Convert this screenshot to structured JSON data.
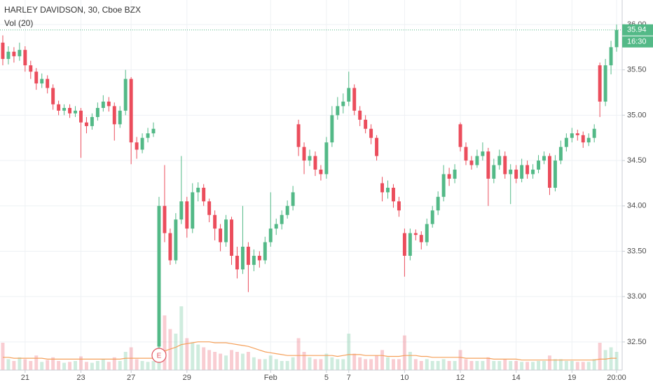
{
  "chart_data": {
    "type": "candlestick",
    "title": "HARLEY DAVIDSON, 30, Cboe BZX",
    "volume_legend": "Vol (20)",
    "countdown": "16:30",
    "earnings_marker": "E",
    "up_color": "#53b987",
    "down_color": "#eb4d5c",
    "volume_ma_color": "#f5a05a",
    "grid": true,
    "xlim": [
      -0.5,
      111
    ],
    "ylim": [
      32.19,
      36.27
    ],
    "vlim": [
      0,
      100
    ],
    "xticks": [
      {
        "value": 4,
        "label": "21"
      },
      {
        "value": 14,
        "label": "23"
      },
      {
        "value": 23,
        "label": "27"
      },
      {
        "value": 33,
        "label": "29"
      },
      {
        "value": 48,
        "label": "Feb"
      },
      {
        "value": 58,
        "label": "5"
      },
      {
        "value": 62,
        "label": "7"
      },
      {
        "value": 72,
        "label": "10"
      },
      {
        "value": 82,
        "label": "12"
      },
      {
        "value": 92,
        "label": "14"
      },
      {
        "value": 102,
        "label": "19"
      },
      {
        "value": 110,
        "label": "20:00"
      }
    ],
    "yticks": [
      {
        "value": 32.5,
        "label": "32.50"
      },
      {
        "value": 33,
        "label": "33.00"
      },
      {
        "value": 33.5,
        "label": "33.50"
      },
      {
        "value": 34,
        "label": "34.00"
      },
      {
        "value": 34.5,
        "label": "34.50"
      },
      {
        "value": 35,
        "label": "35.00"
      },
      {
        "value": 35.5,
        "label": "35.50"
      },
      {
        "value": 36,
        "label": "36.00"
      }
    ],
    "open": [
      35.8,
      35.62,
      35.7,
      35.65,
      35.72,
      35.55,
      35.48,
      35.35,
      35.4,
      35.3,
      35.12,
      35.05,
      35.08,
      35.02,
      35.05,
      34.92,
      34.88,
      34.98,
      35.08,
      35.15,
      35.1,
      34.9,
      35.05,
      35.4,
      34.7,
      34.62,
      34.75,
      34.8,
      32.45,
      34.0,
      33.7,
      33.4,
      33.85,
      34.05,
      33.75,
      34.15,
      34.2,
      34.05,
      33.9,
      33.75,
      33.6,
      33.85,
      33.45,
      33.3,
      33.55,
      33.35,
      33.45,
      33.4,
      33.6,
      33.75,
      33.8,
      33.9,
      34.0,
      34.9,
      34.65,
      34.5,
      34.55,
      34.4,
      34.35,
      34.7,
      35.0,
      35.1,
      35.15,
      35.3,
      35.05,
      34.95,
      34.85,
      34.75,
      34.25,
      34.15,
      34.2,
      34.05,
      33.7,
      33.45,
      33.7,
      33.68,
      33.6,
      33.8,
      33.95,
      34.1,
      34.35,
      34.3,
      34.9,
      34.65,
      34.5,
      34.45,
      34.55,
      34.6,
      34.3,
      34.45,
      34.55,
      34.35,
      34.4,
      34.3,
      34.45,
      34.35,
      34.4,
      34.5,
      34.55,
      34.2,
      34.5,
      34.65,
      34.75,
      34.8,
      34.78,
      34.7,
      34.75,
      35.55,
      35.15,
      35.55,
      35.75
    ],
    "high": [
      35.88,
      35.76,
      35.75,
      35.8,
      35.76,
      35.6,
      35.52,
      35.46,
      35.44,
      35.34,
      35.16,
      35.12,
      35.12,
      35.1,
      35.08,
      34.98,
      35.02,
      35.14,
      35.22,
      35.2,
      35.14,
      35.1,
      35.5,
      35.42,
      34.76,
      34.8,
      34.86,
      34.92,
      34.1,
      34.45,
      33.75,
      33.92,
      34.55,
      34.1,
      34.25,
      34.26,
      34.24,
      34.08,
      33.95,
      33.8,
      33.9,
      33.88,
      33.55,
      34.0,
      33.6,
      33.52,
      33.5,
      33.66,
      34.15,
      33.86,
      33.95,
      34.06,
      34.22,
      34.95,
      34.7,
      34.62,
      34.6,
      34.45,
      34.76,
      35.1,
      35.2,
      35.24,
      35.48,
      35.34,
      35.1,
      35.0,
      34.9,
      34.78,
      34.32,
      34.28,
      34.24,
      34.1,
      33.75,
      33.75,
      33.74,
      33.72,
      33.86,
      34.0,
      34.16,
      34.45,
      34.42,
      34.46,
      34.92,
      34.7,
      34.55,
      34.62,
      34.7,
      34.64,
      34.52,
      34.62,
      34.6,
      34.46,
      34.45,
      34.52,
      34.5,
      34.46,
      34.56,
      34.6,
      34.58,
      34.56,
      34.72,
      34.8,
      34.86,
      34.84,
      34.82,
      34.8,
      34.9,
      35.58,
      35.62,
      35.82,
      36.0
    ],
    "low": [
      35.55,
      35.56,
      35.58,
      35.6,
      35.48,
      35.4,
      35.28,
      35.3,
      35.24,
      35.06,
      35.0,
      35.0,
      34.97,
      34.98,
      34.53,
      34.8,
      34.84,
      34.94,
      35.04,
      35.04,
      34.72,
      34.86,
      35.0,
      34.46,
      34.52,
      34.58,
      34.7,
      34.76,
      32.3,
      33.6,
      33.35,
      33.36,
      33.8,
      33.65,
      33.7,
      34.05,
      34.0,
      33.82,
      33.62,
      33.5,
      33.55,
      33.35,
      33.2,
      33.25,
      33.05,
      33.28,
      33.32,
      33.36,
      33.55,
      33.68,
      33.74,
      33.86,
      33.95,
      34.55,
      34.35,
      34.44,
      34.33,
      34.28,
      34.3,
      34.65,
      34.95,
      35.02,
      35.1,
      35.0,
      34.88,
      34.8,
      34.68,
      34.5,
      34.05,
      34.08,
      33.98,
      33.88,
      33.22,
      33.4,
      33.62,
      33.52,
      33.56,
      33.76,
      33.9,
      34.05,
      34.22,
      34.25,
      34.6,
      34.45,
      34.4,
      34.42,
      34.5,
      34.0,
      34.25,
      34.4,
      34.3,
      34.02,
      34.25,
      34.26,
      34.3,
      34.3,
      34.36,
      34.46,
      34.12,
      34.16,
      34.46,
      34.6,
      34.7,
      34.72,
      34.64,
      34.66,
      34.7,
      34.98,
      35.1,
      35.45,
      35.7
    ],
    "close": [
      35.62,
      35.7,
      35.65,
      35.72,
      35.55,
      35.48,
      35.35,
      35.4,
      35.3,
      35.12,
      35.05,
      35.08,
      35.02,
      35.05,
      34.92,
      34.88,
      34.98,
      35.08,
      35.15,
      35.1,
      34.9,
      35.05,
      35.4,
      34.7,
      34.62,
      34.75,
      34.8,
      34.85,
      34.0,
      33.7,
      33.4,
      33.85,
      34.05,
      33.75,
      34.15,
      34.2,
      34.05,
      33.9,
      33.75,
      33.6,
      33.85,
      33.45,
      33.3,
      33.55,
      33.35,
      33.45,
      33.4,
      33.6,
      33.75,
      33.8,
      33.9,
      34.0,
      34.15,
      34.65,
      34.5,
      34.55,
      34.4,
      34.35,
      34.7,
      35.0,
      35.1,
      35.15,
      35.3,
      35.05,
      34.95,
      34.85,
      34.75,
      34.55,
      34.15,
      34.2,
      34.05,
      33.95,
      33.45,
      33.7,
      33.68,
      33.6,
      33.8,
      33.95,
      34.1,
      34.35,
      34.3,
      34.4,
      34.65,
      34.5,
      34.45,
      34.55,
      34.6,
      34.3,
      34.45,
      34.55,
      34.35,
      34.4,
      34.3,
      34.45,
      34.35,
      34.4,
      34.5,
      34.55,
      34.2,
      34.5,
      34.65,
      34.75,
      34.8,
      34.78,
      34.7,
      34.75,
      34.85,
      35.15,
      35.55,
      35.75,
      35.94
    ],
    "volume": [
      30,
      12,
      10,
      14,
      12,
      10,
      16,
      9,
      11,
      14,
      10,
      8,
      9,
      10,
      15,
      9,
      8,
      10,
      12,
      9,
      14,
      10,
      20,
      25,
      12,
      10,
      9,
      10,
      95,
      60,
      45,
      40,
      70,
      35,
      30,
      28,
      25,
      22,
      20,
      18,
      16,
      22,
      20,
      18,
      20,
      14,
      12,
      12,
      16,
      12,
      10,
      10,
      14,
      35,
      20,
      14,
      12,
      12,
      18,
      14,
      12,
      12,
      40,
      18,
      14,
      12,
      12,
      16,
      22,
      14,
      12,
      12,
      38,
      20,
      12,
      10,
      12,
      10,
      10,
      12,
      10,
      10,
      22,
      12,
      10,
      10,
      10,
      14,
      10,
      10,
      12,
      10,
      10,
      9,
      9,
      9,
      10,
      10,
      16,
      12,
      12,
      10,
      10,
      9,
      9,
      9,
      12,
      30,
      22,
      25,
      20
    ],
    "volume_ma": [
      14,
      14,
      13,
      13,
      13,
      13,
      13,
      13,
      12,
      12,
      12,
      12,
      12,
      12,
      12,
      12,
      12,
      12,
      12,
      12,
      12,
      12,
      13,
      13,
      13,
      13,
      13,
      13,
      18,
      21,
      23,
      25,
      28,
      29,
      30,
      31,
      31,
      31,
      30,
      30,
      30,
      29,
      28,
      27,
      26,
      24,
      22,
      20,
      19,
      18,
      17,
      16,
      16,
      16,
      16,
      16,
      16,
      16,
      16,
      16,
      15,
      16,
      17,
      17,
      17,
      16,
      16,
      16,
      16,
      15,
      15,
      15,
      16,
      16,
      16,
      15,
      15,
      14,
      14,
      14,
      14,
      14,
      14,
      13,
      13,
      13,
      13,
      13,
      12,
      12,
      12,
      12,
      12,
      11,
      11,
      11,
      11,
      11,
      11,
      11,
      11,
      11,
      11,
      11,
      11,
      11,
      11,
      12,
      12,
      13,
      13
    ]
  }
}
